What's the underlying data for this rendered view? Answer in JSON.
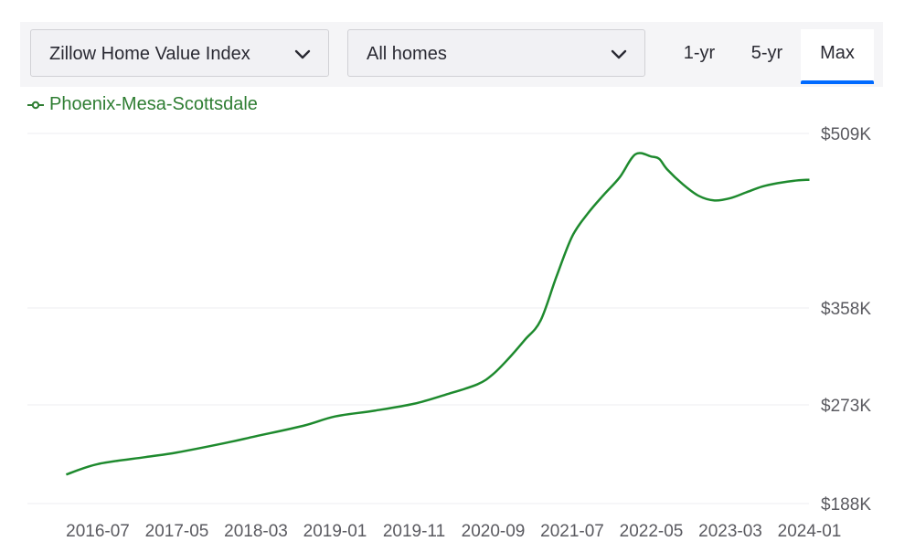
{
  "controls": {
    "metric_dropdown": "Zillow Home Value Index",
    "home_type_dropdown": "All homes",
    "range_buttons": [
      "1-yr",
      "5-yr",
      "Max"
    ],
    "selected_range": "Max"
  },
  "colors": {
    "series": "#1e8a2e",
    "accent": "#006aff",
    "grid": "#ececf0"
  },
  "chart_data": {
    "type": "line",
    "legend_position": "top-left",
    "grid": true,
    "y_tick_labels": [
      "$509K",
      "$358K",
      "$273K",
      "$188K"
    ],
    "y_tick_values": [
      509,
      358,
      273,
      188
    ],
    "x_tick_labels": [
      "2016-07",
      "2017-05",
      "2018-03",
      "2019-01",
      "2019-11",
      "2020-09",
      "2021-07",
      "2022-05",
      "2023-03",
      "2024-01"
    ],
    "series": [
      {
        "name": "Phoenix-Mesa-Scottsdale",
        "x": [
          "2016-03",
          "2016-07",
          "2017-01",
          "2017-05",
          "2017-11",
          "2018-03",
          "2018-09",
          "2019-01",
          "2019-06",
          "2019-11",
          "2020-03",
          "2020-07",
          "2020-09",
          "2020-11",
          "2021-01",
          "2021-03",
          "2021-05",
          "2021-07",
          "2021-09",
          "2021-11",
          "2022-01",
          "2022-03",
          "2022-05",
          "2022-06",
          "2022-07",
          "2022-09",
          "2022-11",
          "2023-01",
          "2023-03",
          "2023-05",
          "2023-07",
          "2023-09",
          "2023-11",
          "2024-01"
        ],
        "values": [
          213,
          222,
          228,
          232,
          240,
          246,
          255,
          263,
          268,
          274,
          282,
          291,
          300,
          314,
          330,
          347,
          385,
          420,
          440,
          456,
          471,
          491,
          489,
          487,
          478,
          465,
          455,
          451,
          453,
          458,
          463,
          466,
          468,
          469
        ]
      }
    ]
  }
}
